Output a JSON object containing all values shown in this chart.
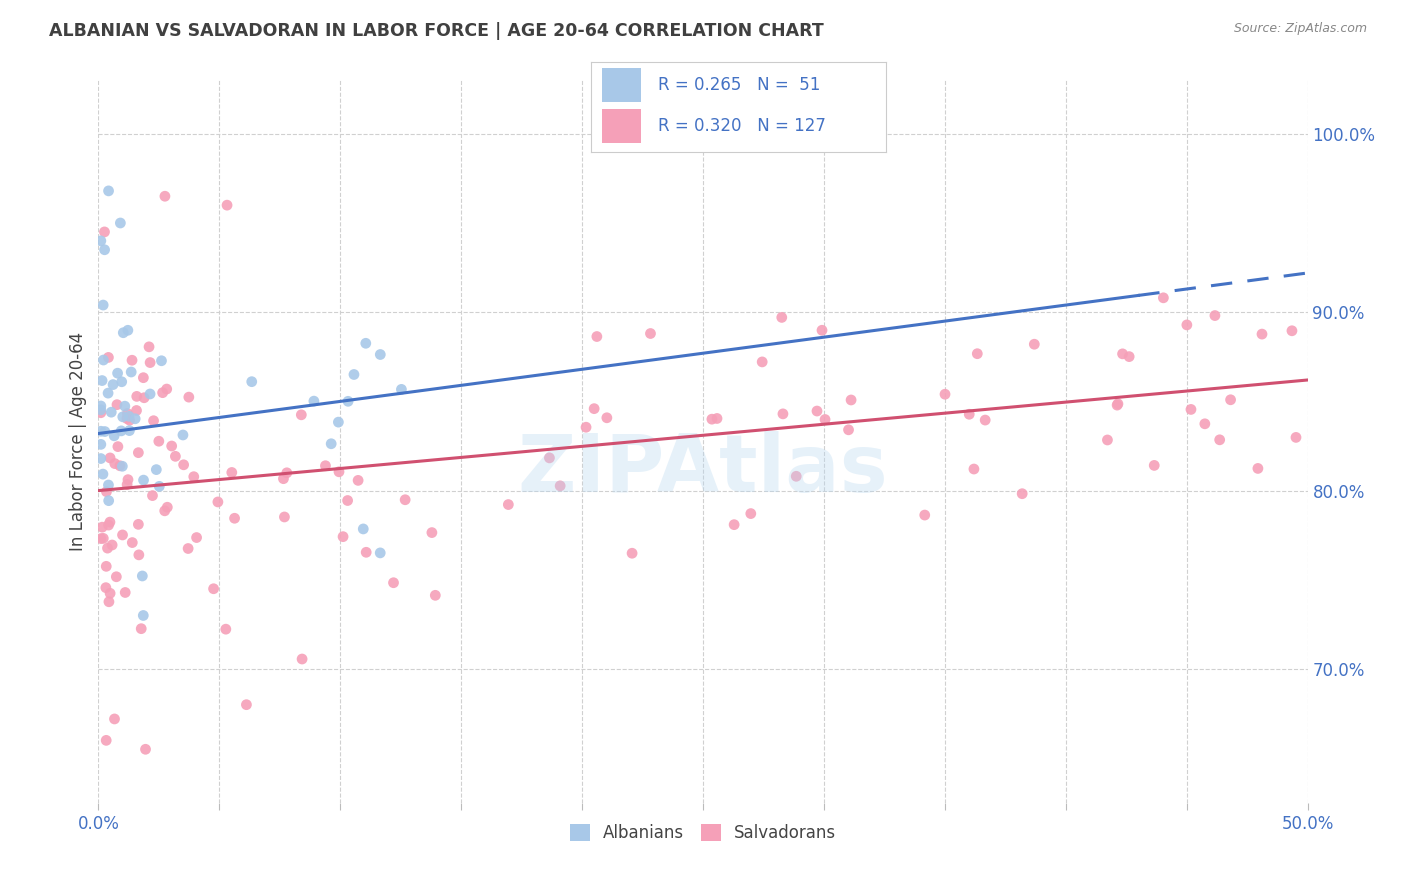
{
  "title": "ALBANIAN VS SALVADORAN IN LABOR FORCE | AGE 20-64 CORRELATION CHART",
  "source": "Source: ZipAtlas.com",
  "ylabel": "In Labor Force | Age 20-64",
  "xlim": [
    0.0,
    0.5
  ],
  "ylim": [
    0.625,
    1.03
  ],
  "xtick_positions": [
    0.0,
    0.05,
    0.1,
    0.15,
    0.2,
    0.25,
    0.3,
    0.35,
    0.4,
    0.45,
    0.5
  ],
  "ytick_positions": [
    0.7,
    0.8,
    0.9,
    1.0
  ],
  "ytick_labels": [
    "70.0%",
    "80.0%",
    "90.0%",
    "100.0%"
  ],
  "albanian_R": 0.265,
  "albanian_N": 51,
  "salvadoran_R": 0.32,
  "salvadoran_N": 127,
  "albanian_color": "#a8c8e8",
  "salvadoran_color": "#f5a0b8",
  "albanian_line_color": "#4472c4",
  "salvadoran_line_color": "#d05070",
  "label_color": "#4472c4",
  "tick_color": "#4472c4",
  "grid_color": "#d0d0d0",
  "title_color": "#404040",
  "source_color": "#888888",
  "watermark": "ZIPAtlas",
  "background_color": "#ffffff",
  "alb_line_x0": 0.0,
  "alb_line_y0": 0.832,
  "alb_line_x1": 0.5,
  "alb_line_y1": 0.922,
  "alb_line_solid_end": 0.43,
  "sal_line_x0": 0.0,
  "sal_line_y0": 0.8,
  "sal_line_x1": 0.5,
  "sal_line_y1": 0.862
}
